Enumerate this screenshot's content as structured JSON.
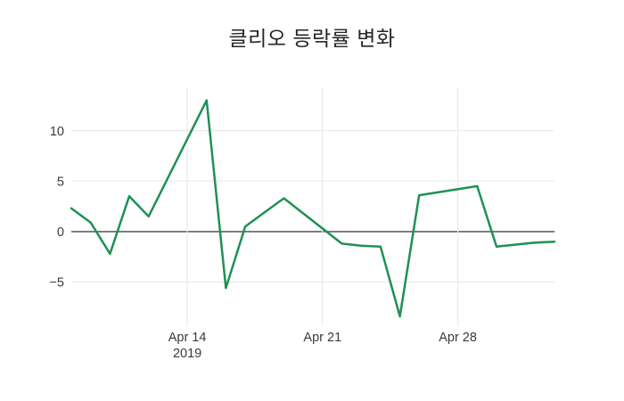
{
  "chart_data": {
    "type": "line",
    "title": "클리오 등락률 변화",
    "xlabel": "",
    "ylabel": "",
    "grid": true,
    "legend": "none",
    "xlim": [
      "2019-04-08",
      "2019-05-03"
    ],
    "ylim": [
      -8.93,
      14.29
    ],
    "series": [
      {
        "name": "클리오 등락률",
        "color": "#1e9154",
        "x": [
          "2019-04-08",
          "2019-04-09",
          "2019-04-10",
          "2019-04-11",
          "2019-04-12",
          "2019-04-15",
          "2019-04-16",
          "2019-04-17",
          "2019-04-18",
          "2019-04-19",
          "2019-04-22",
          "2019-04-23",
          "2019-04-24",
          "2019-04-25",
          "2019-04-26",
          "2019-04-29",
          "2019-04-30",
          "2019-05-02",
          "2019-05-03"
        ],
        "y": [
          2.3,
          0.9,
          -2.2,
          3.5,
          1.5,
          13.0,
          -5.6,
          0.5,
          1.9,
          3.3,
          -1.2,
          -1.4,
          -1.5,
          -8.4,
          3.6,
          4.5,
          -1.5,
          -1.1,
          -1.0
        ]
      }
    ],
    "y_ticks": [
      {
        "value": -5,
        "label": "−5"
      },
      {
        "value": 0,
        "label": "0"
      },
      {
        "value": 5,
        "label": "5"
      },
      {
        "value": 10,
        "label": "10"
      }
    ],
    "x_ticks": [
      {
        "date": "2019-04-14",
        "label": "Apr 14",
        "sublabel": "2019"
      },
      {
        "date": "2019-04-21",
        "label": "Apr 21",
        "sublabel": ""
      },
      {
        "date": "2019-04-28",
        "label": "Apr 28",
        "sublabel": ""
      }
    ],
    "colors": {
      "background": "#ffffff",
      "grid": "#ebebeb",
      "zeroline": "#444444",
      "tick_label": "#3a3a3a",
      "title": "#262626"
    }
  }
}
